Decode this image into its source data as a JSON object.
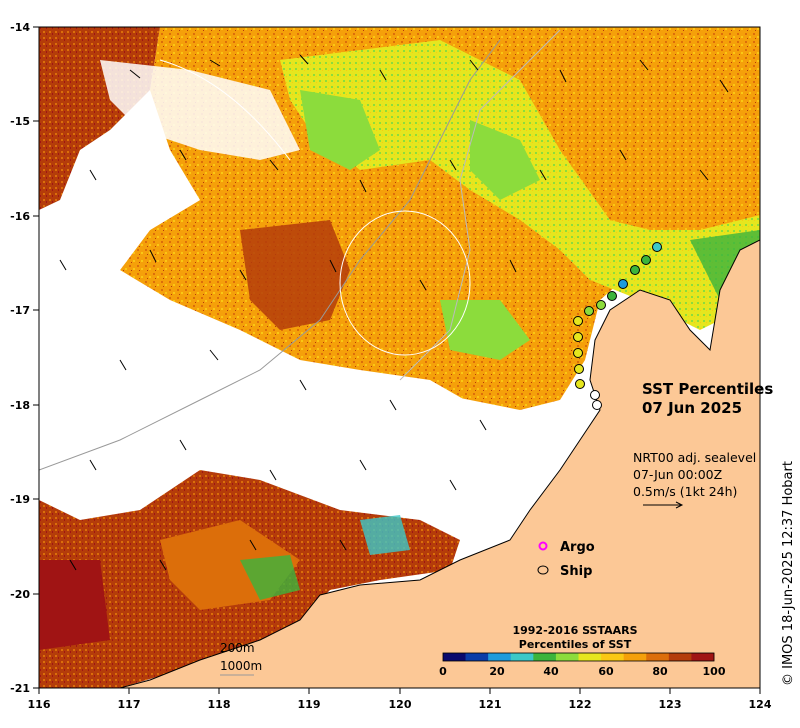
{
  "map": {
    "title": "SST Percentiles",
    "date": "07 Jun 2025",
    "info_lines": [
      "NRT00 adj. sealevel",
      "07-Jun 00:00Z",
      "0.5m/s (1kt 24h)"
    ],
    "credit": "© IMOS 18-Jun-2025 12:37 Hobart",
    "lon_ticks": [
      "116",
      "117",
      "118",
      "119",
      "120",
      "121",
      "122",
      "123",
      "124"
    ],
    "lat_ticks": [
      "-14",
      "-15",
      "-16",
      "-17",
      "-18",
      "-19",
      "-20",
      "-21"
    ],
    "isobaths": [
      "200m",
      "1000m"
    ],
    "markers": {
      "argo_label": "Argo",
      "ship_label": "Ship"
    },
    "colorbar": {
      "title_line1": "1992-2016 SSTAARS",
      "title_line2": "Percentiles of SST",
      "tick_labels": [
        "0",
        "20",
        "40",
        "60",
        "80",
        "100"
      ],
      "colors": [
        "#0a0a6e",
        "#0a3ca8",
        "#1e9bdc",
        "#3cc8c8",
        "#3cb43c",
        "#8cdc3c",
        "#e6e61e",
        "#fac814",
        "#f5a00a",
        "#dc6e0a",
        "#b43c0a",
        "#a01414"
      ]
    },
    "colors": {
      "land": "#fcc896",
      "accent_argo": "#ff00ff",
      "ship": "#000000"
    }
  }
}
